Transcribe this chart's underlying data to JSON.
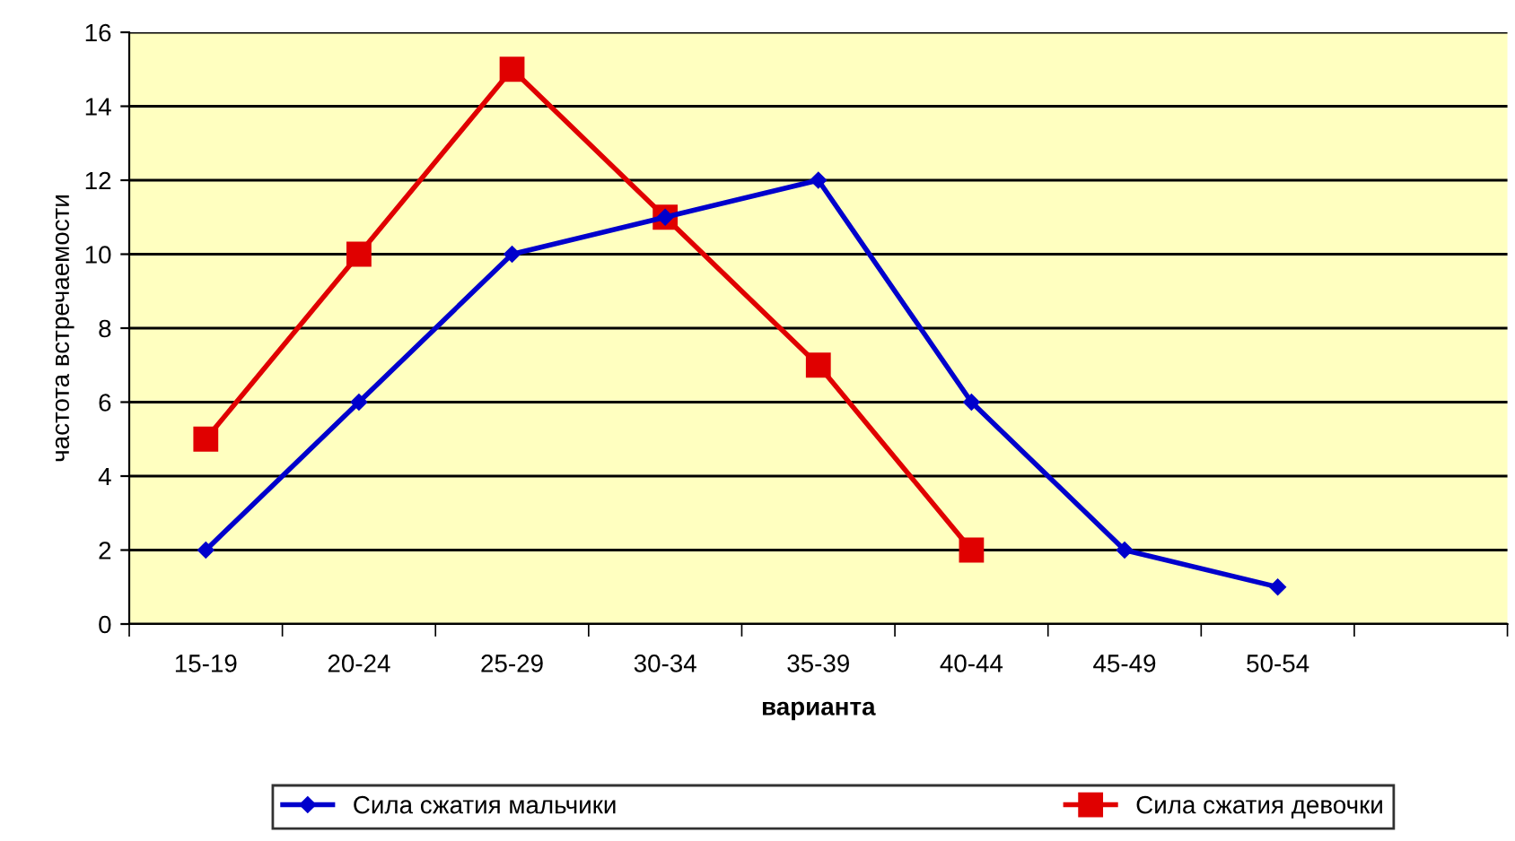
{
  "chart_data": {
    "type": "line",
    "xlabel": "варианта",
    "ylabel": "частота встречаемости",
    "categories": [
      "15-19",
      "20-24",
      "25-29",
      "30-34",
      "35-39",
      "40-44",
      "45-49",
      "50-54",
      null
    ],
    "series": [
      {
        "name": "Сила сжатия мальчики",
        "color": "#0000cc",
        "marker": "diamond",
        "values": [
          2,
          6,
          10,
          11,
          12,
          6,
          2,
          1,
          null
        ]
      },
      {
        "name": "Сила сжатия девочки",
        "color": "#e00000",
        "marker": "square",
        "values": [
          5,
          10,
          15,
          11,
          7,
          2,
          null,
          null,
          null
        ]
      }
    ],
    "ylim": [
      0,
      16
    ],
    "yticks": [
      0,
      2,
      4,
      6,
      8,
      10,
      12,
      14,
      16
    ],
    "grid": "y",
    "legend": "bottom",
    "line_style": "solid"
  }
}
